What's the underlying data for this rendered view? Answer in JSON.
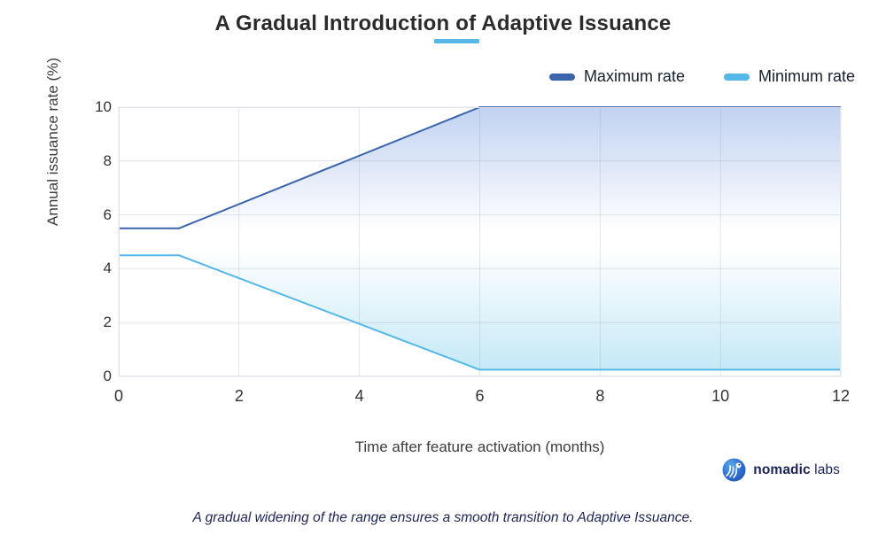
{
  "header": {
    "title": "A Gradual Introduction of Adaptive Issuance",
    "underline_color": "#56b7e8"
  },
  "legend": {
    "items": [
      {
        "label": "Maximum rate",
        "color": "#3c64ad"
      },
      {
        "label": "Minimum rate",
        "color": "#55b7e8"
      }
    ]
  },
  "chart_data": {
    "type": "area",
    "title": "A Gradual Introduction of Adaptive Issuance",
    "xlabel": "Time after feature activation (months)",
    "ylabel": "Annual issuance rate (%)",
    "xlim": [
      0,
      12
    ],
    "ylim": [
      0,
      10
    ],
    "x_ticks": [
      0,
      2,
      4,
      6,
      8,
      10,
      12
    ],
    "y_ticks": [
      0,
      2,
      4,
      6,
      8,
      10
    ],
    "grid": true,
    "legend_position": "top-right",
    "series": [
      {
        "name": "Maximum rate",
        "color": "#3c64ad",
        "points": [
          [
            0,
            5.5
          ],
          [
            1,
            5.5
          ],
          [
            6,
            10
          ],
          [
            12,
            10
          ]
        ]
      },
      {
        "name": "Minimum rate",
        "color": "#55b7e8",
        "points": [
          [
            0,
            4.5
          ],
          [
            1,
            4.5
          ],
          [
            6,
            0.25
          ],
          [
            12,
            0.25
          ]
        ]
      }
    ],
    "band_fill": {
      "top": "#c1d2f1",
      "middle": "#ffffff",
      "bottom": "#c5e9f7"
    },
    "gridline_color": "rgba(130,140,160,0.22)",
    "border_color": "#e2e3e9"
  },
  "footer": {
    "brand_bold": "nomadic",
    "brand_regular": "labs",
    "caption": "A gradual widening of the range ensures a smooth transition to Adaptive Issuance."
  }
}
